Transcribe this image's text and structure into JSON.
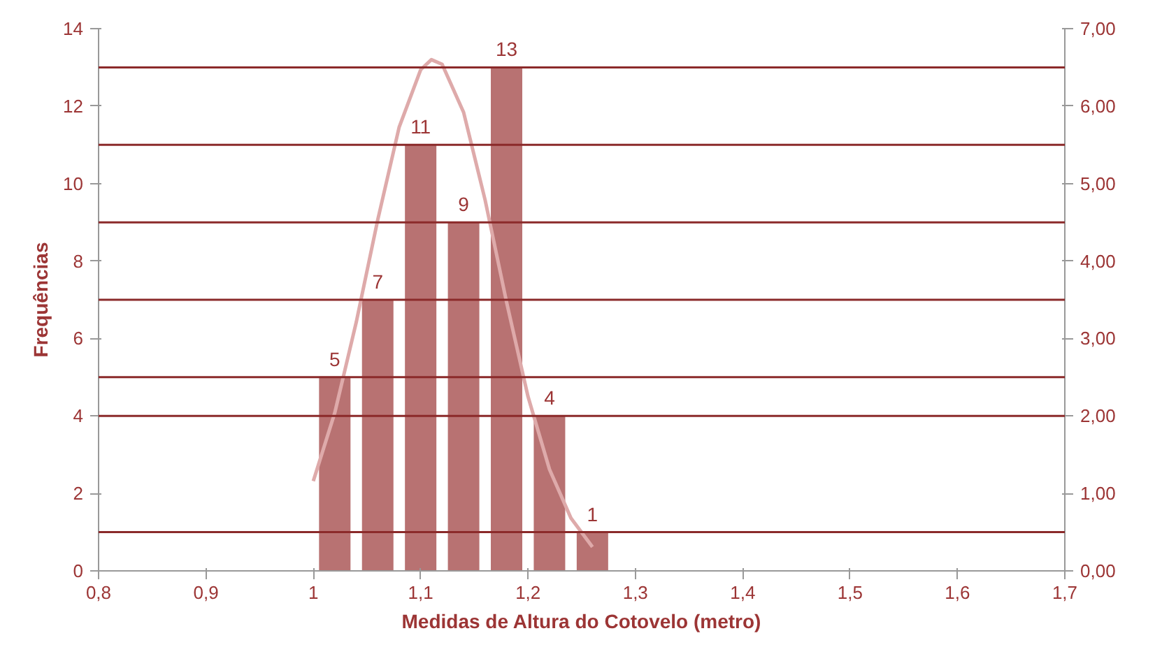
{
  "chart_data": {
    "type": "bar",
    "xlabel": "Medidas de Altura do Cotovelo (metro)",
    "ylabel": "Frequências",
    "x": [
      1.02,
      1.06,
      1.1,
      1.14,
      1.18,
      1.22,
      1.26
    ],
    "series": [
      {
        "color": "#b87272",
        "values": [
          5,
          7,
          11,
          9,
          13,
          4,
          1
        ],
        "value_labels": [
          "5",
          "7",
          "11",
          "9",
          "13",
          "4",
          "1"
        ]
      },
      {
        "type": "line",
        "axis": "y2",
        "color": "#deaaaa",
        "x": [
          1.0,
          1.02,
          1.04,
          1.06,
          1.08,
          1.1,
          1.11,
          1.12,
          1.14,
          1.16,
          1.18,
          1.2,
          1.22,
          1.24,
          1.26
        ],
        "values": [
          1.16,
          2.04,
          3.21,
          4.53,
          5.73,
          6.47,
          6.6,
          6.54,
          5.92,
          4.79,
          3.47,
          2.25,
          1.31,
          0.68,
          0.31
        ]
      }
    ],
    "xlim": [
      0.8,
      1.7
    ],
    "xticks": [
      {
        "value": 0.8,
        "label": "0,8"
      },
      {
        "value": 0.9,
        "label": "0,9"
      },
      1,
      {
        "value": 1.1,
        "label": "1,1"
      },
      {
        "value": 1.2,
        "label": "1,2"
      },
      {
        "value": 1.3,
        "label": "1,3"
      },
      {
        "value": 1.4,
        "label": "1,4"
      },
      {
        "value": 1.5,
        "label": "1,5"
      },
      {
        "value": 1.6,
        "label": "1,6"
      },
      {
        "value": 1.7,
        "label": "1,7"
      }
    ],
    "ylim": [
      0,
      14
    ],
    "yticks": [
      0,
      2,
      4,
      6,
      8,
      10,
      12,
      14
    ],
    "y2lim": [
      0,
      7
    ],
    "y2ticks": [
      {
        "value": 0,
        "label": "0,00"
      },
      {
        "value": 1,
        "label": "1,00"
      },
      {
        "value": 2,
        "label": "2,00"
      },
      {
        "value": 3,
        "label": "3,00"
      },
      {
        "value": 4,
        "label": "4,00"
      },
      {
        "value": 5,
        "label": "5,00"
      },
      {
        "value": 6,
        "label": "6,00"
      },
      {
        "value": 7,
        "label": "7,00"
      }
    ],
    "ref_lines": [
      {
        "axis": "y",
        "value": 1,
        "color": "#8b2a2a"
      },
      {
        "axis": "y",
        "value": 4,
        "color": "#8b2a2a"
      },
      {
        "axis": "y",
        "value": 5,
        "color": "#8b2a2a"
      },
      {
        "axis": "y",
        "value": 7,
        "color": "#8b2a2a"
      },
      {
        "axis": "y",
        "value": 9,
        "color": "#8b2a2a"
      },
      {
        "axis": "y",
        "value": 11,
        "color": "#8b2a2a"
      },
      {
        "axis": "y",
        "value": 13,
        "color": "#8b2a2a"
      }
    ],
    "grid": false
  }
}
